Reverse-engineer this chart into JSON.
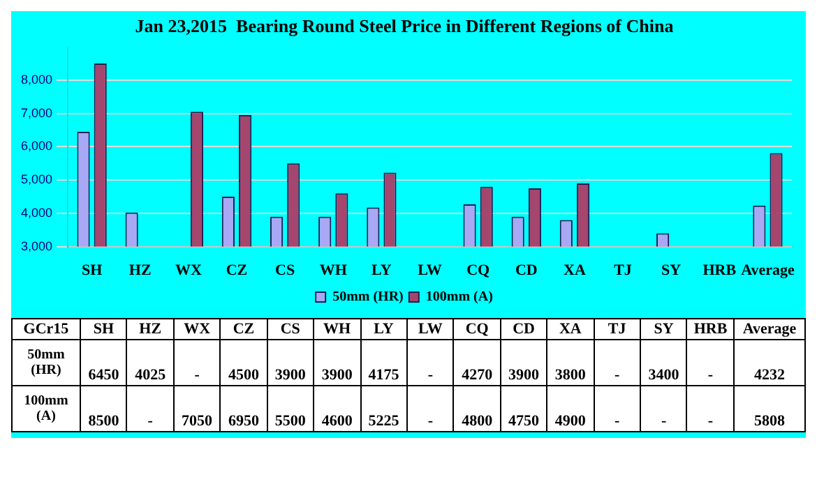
{
  "chart_data": {
    "type": "bar",
    "title": "Jan 23,2015  Bearing Round Steel Price in Different Regions of China",
    "categories": [
      "SH",
      "HZ",
      "WX",
      "CZ",
      "CS",
      "WH",
      "LY",
      "LW",
      "CQ",
      "CD",
      "XA",
      "TJ",
      "SY",
      "HRB",
      "Average"
    ],
    "series": [
      {
        "name": "50mm (HR)",
        "color": "#a8a8f4",
        "values": [
          6450,
          4025,
          null,
          4500,
          3900,
          3900,
          4175,
          null,
          4270,
          3900,
          3800,
          null,
          3400,
          null,
          4232
        ],
        "value_labels": [
          "6450",
          "4025",
          "-",
          "4500",
          "3900",
          "3900",
          "4175",
          "-",
          "4270",
          "3900",
          "3800",
          "-",
          "3400",
          "-",
          "4232"
        ]
      },
      {
        "name": "100mm (A)",
        "color": "#a4466e",
        "values": [
          8500,
          null,
          7050,
          6950,
          5500,
          4600,
          5225,
          null,
          4800,
          4750,
          4900,
          null,
          null,
          null,
          5808
        ],
        "value_labels": [
          "8500",
          "-",
          "7050",
          "6950",
          "5500",
          "4600",
          "5225",
          "-",
          "4800",
          "4750",
          "4900",
          "-",
          "-",
          "-",
          "5808"
        ]
      }
    ],
    "annotations": [
      "GCr15"
    ],
    "ylim": [
      3000,
      9000
    ],
    "yticks": [
      {
        "value": 3000,
        "label": "3,000"
      },
      {
        "value": 4000,
        "label": "4,000"
      },
      {
        "value": 5000,
        "label": "5,000"
      },
      {
        "value": 6000,
        "label": "6,000"
      },
      {
        "value": 7000,
        "label": "7,000"
      },
      {
        "value": 8000,
        "label": "8,000"
      }
    ],
    "grid": "y",
    "legend": "bottom"
  }
}
